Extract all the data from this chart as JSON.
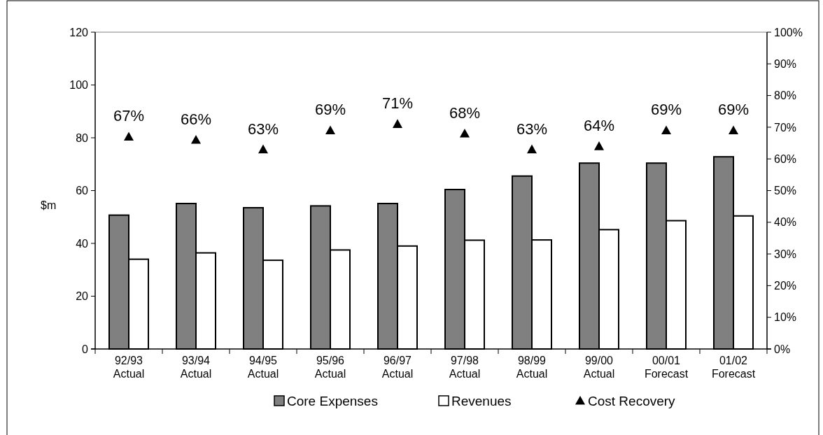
{
  "chart_data": {
    "type": "bar",
    "ylabel": "$m",
    "categories": [
      "92/93 Actual",
      "93/94 Actual",
      "94/95 Actual",
      "95/96 Actual",
      "96/97 Actual",
      "97/98 Actual",
      "98/99 Actual",
      "99/00 Actual",
      "00/01 Forecast",
      "01/02 Forecast"
    ],
    "series": [
      {
        "name": "Core Expenses",
        "color": "#808080",
        "values": [
          50.7,
          55.1,
          53.5,
          54.2,
          55.1,
          60.4,
          65.5,
          70.4,
          70.4,
          72.8
        ]
      },
      {
        "name": "Revenues",
        "color": "#ffffff",
        "values": [
          34.0,
          36.4,
          33.6,
          37.5,
          39.0,
          41.2,
          41.3,
          45.2,
          48.6,
          50.4
        ]
      },
      {
        "name": "Cost Recovery",
        "type": "scatter",
        "axis": "y2",
        "marker": "triangle",
        "color": "#000000",
        "values": [
          67,
          66,
          63,
          69,
          71,
          68,
          63,
          64,
          69,
          69
        ],
        "value_labels": [
          "67%",
          "66%",
          "63%",
          "69%",
          "71%",
          "68%",
          "63%",
          "64%",
          "69%",
          "69%"
        ]
      }
    ],
    "ylim": [
      0,
      120
    ],
    "yticks": [
      0,
      20,
      40,
      60,
      80,
      100,
      120
    ],
    "y2lim": [
      0,
      100
    ],
    "y2ticks": [
      {
        "value": 0,
        "label": "0%"
      },
      {
        "value": 10,
        "label": "10%"
      },
      {
        "value": 20,
        "label": "20%"
      },
      {
        "value": 30,
        "label": "30%"
      },
      {
        "value": 40,
        "label": "40%"
      },
      {
        "value": 50,
        "label": "50%"
      },
      {
        "value": 60,
        "label": "60%"
      },
      {
        "value": 70,
        "label": "70%"
      },
      {
        "value": 80,
        "label": "80%"
      },
      {
        "value": 90,
        "label": "90%"
      },
      {
        "value": 100,
        "label": "100%"
      }
    ],
    "grid": false,
    "legend": "bottom"
  }
}
